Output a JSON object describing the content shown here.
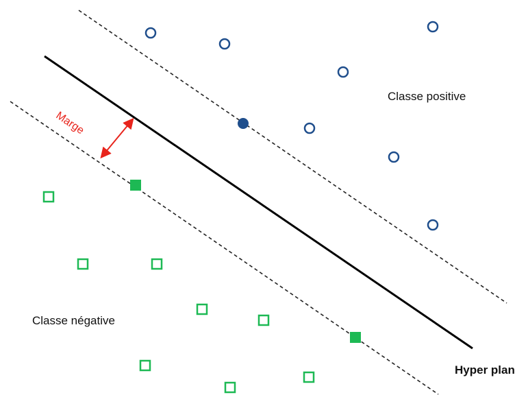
{
  "labels": {
    "positive_class": "Classe positive",
    "negative_class": "Classe négative",
    "hyperplane": "Hyper plan",
    "margin": "Marge"
  },
  "colors": {
    "positive": "#1f4e8c",
    "negative": "#1db954",
    "margin_arrow": "#e8241c",
    "hyperplane": "#000000",
    "margin_lines": "#222222",
    "text": "#111111"
  },
  "legend": {
    "positive_marker": "circle",
    "negative_marker": "square",
    "support_vectors": "filled markers"
  }
}
